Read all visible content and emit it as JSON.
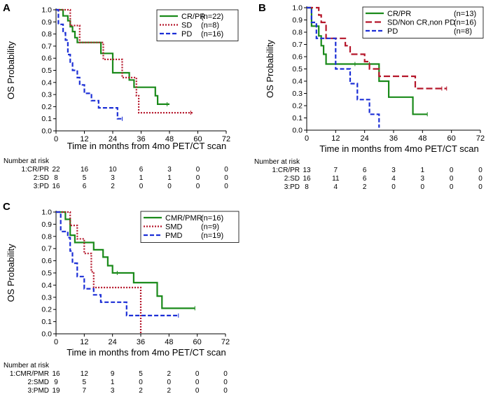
{
  "chart_data": [
    {
      "panel_label": "A",
      "type": "line",
      "title": "",
      "xlabel": "Time in months from 4mo PET/CT scan",
      "ylabel": "OS Probability",
      "xlim": [
        0,
        72
      ],
      "ylim": [
        0,
        1
      ],
      "x_ticks": [
        "0",
        "12",
        "24",
        "36",
        "48",
        "60",
        "72"
      ],
      "y_ticks": [
        "0.0",
        "0.1",
        "0.2",
        "0.3",
        "0.4",
        "0.5",
        "0.6",
        "0.7",
        "0.8",
        "0.9",
        "1.0"
      ],
      "legend_position": "top-right",
      "series": [
        {
          "name": "CR/PR",
          "n_label": "(n=22)",
          "color": "#1a8a1a",
          "dash": "solid",
          "points": [
            [
              0,
              1
            ],
            [
              3,
              1
            ],
            [
              3,
              0.95
            ],
            [
              5,
              0.95
            ],
            [
              5,
              0.91
            ],
            [
              6,
              0.91
            ],
            [
              6,
              0.86
            ],
            [
              7,
              0.86
            ],
            [
              7,
              0.82
            ],
            [
              8,
              0.82
            ],
            [
              8,
              0.77
            ],
            [
              9,
              0.77
            ],
            [
              9,
              0.73
            ],
            [
              19,
              0.73
            ],
            [
              19,
              0.64
            ],
            [
              24,
              0.64
            ],
            [
              24,
              0.48
            ],
            [
              31,
              0.48
            ],
            [
              31,
              0.42
            ],
            [
              33,
              0.42
            ],
            [
              33,
              0.36
            ],
            [
              42,
              0.36
            ],
            [
              42,
              0.29
            ],
            [
              43,
              0.29
            ],
            [
              43,
              0.22
            ],
            [
              48,
              0.22
            ]
          ],
          "censor": [
            47
          ]
        },
        {
          "name": "SD",
          "n_label": "(n=8)",
          "color": "#b5162a",
          "dash": "dot",
          "points": [
            [
              0,
              1
            ],
            [
              6,
              1
            ],
            [
              6,
              0.87
            ],
            [
              10,
              0.87
            ],
            [
              10,
              0.73
            ],
            [
              20,
              0.73
            ],
            [
              20,
              0.59
            ],
            [
              28,
              0.59
            ],
            [
              28,
              0.44
            ],
            [
              34,
              0.44
            ],
            [
              34,
              0.29
            ],
            [
              35,
              0.29
            ],
            [
              35,
              0.15
            ],
            [
              58,
              0.15
            ]
          ],
          "censor": [
            57
          ]
        },
        {
          "name": "PD",
          "n_label": "(n=16)",
          "color": "#1c2fd6",
          "dash": "dash",
          "points": [
            [
              0,
              1
            ],
            [
              1,
              1
            ],
            [
              1,
              0.88
            ],
            [
              3,
              0.88
            ],
            [
              3,
              0.81
            ],
            [
              4,
              0.81
            ],
            [
              4,
              0.75
            ],
            [
              5,
              0.75
            ],
            [
              5,
              0.63
            ],
            [
              6,
              0.63
            ],
            [
              6,
              0.56
            ],
            [
              7,
              0.56
            ],
            [
              7,
              0.5
            ],
            [
              9,
              0.5
            ],
            [
              9,
              0.44
            ],
            [
              10,
              0.44
            ],
            [
              10,
              0.38
            ],
            [
              12,
              0.38
            ],
            [
              12,
              0.31
            ],
            [
              15,
              0.31
            ],
            [
              15,
              0.25
            ],
            [
              18,
              0.25
            ],
            [
              18,
              0.19
            ],
            [
              26,
              0.19
            ],
            [
              26,
              0.1
            ],
            [
              28,
              0.1
            ]
          ],
          "censor": [
            28
          ]
        }
      ],
      "risk_table": {
        "title": "Number at risk",
        "times": [
          "0",
          "12",
          "24",
          "36",
          "48",
          "60",
          "72"
        ],
        "rows": [
          {
            "label": "1:CR/PR",
            "counts": [
              "22",
              "16",
              "10",
              "6",
              "3",
              "0",
              "0"
            ]
          },
          {
            "label": "2:SD",
            "counts": [
              "8",
              "5",
              "3",
              "1",
              "1",
              "0",
              "0"
            ]
          },
          {
            "label": "3:PD",
            "counts": [
              "16",
              "6",
              "2",
              "0",
              "0",
              "0",
              "0"
            ]
          }
        ]
      }
    },
    {
      "panel_label": "B",
      "type": "line",
      "title": "",
      "xlabel": "Time in months from 4mo PET/CT scan",
      "ylabel": "OS Probability",
      "xlim": [
        0,
        72
      ],
      "ylim": [
        0,
        1
      ],
      "x_ticks": [
        "0",
        "12",
        "24",
        "36",
        "48",
        "60",
        "72"
      ],
      "y_ticks": [
        "0.0",
        "0.1",
        "0.2",
        "0.3",
        "0.4",
        "0.5",
        "0.6",
        "0.7",
        "0.8",
        "0.9",
        "1.0"
      ],
      "legend_position": "top-right",
      "series": [
        {
          "name": "CR/PR",
          "n_label": "(n=13)",
          "color": "#1a8a1a",
          "dash": "solid",
          "points": [
            [
              0,
              1
            ],
            [
              2,
              1
            ],
            [
              2,
              0.85
            ],
            [
              5,
              0.85
            ],
            [
              5,
              0.77
            ],
            [
              6,
              0.77
            ],
            [
              6,
              0.69
            ],
            [
              7,
              0.69
            ],
            [
              7,
              0.62
            ],
            [
              8,
              0.62
            ],
            [
              8,
              0.54
            ],
            [
              30,
              0.54
            ],
            [
              30,
              0.4
            ],
            [
              34,
              0.4
            ],
            [
              34,
              0.27
            ],
            [
              44,
              0.27
            ],
            [
              44,
              0.13
            ],
            [
              50,
              0.13
            ]
          ],
          "censor": [
            20,
            26,
            50
          ]
        },
        {
          "name": "SD/Non CR,non PD",
          "n_label": "(n=16)",
          "color": "#b5162a",
          "dash": "longdash",
          "points": [
            [
              0,
              1
            ],
            [
              5,
              1
            ],
            [
              5,
              0.94
            ],
            [
              6,
              0.94
            ],
            [
              6,
              0.88
            ],
            [
              8,
              0.88
            ],
            [
              8,
              0.75
            ],
            [
              16,
              0.75
            ],
            [
              16,
              0.69
            ],
            [
              18,
              0.69
            ],
            [
              18,
              0.62
            ],
            [
              24,
              0.62
            ],
            [
              24,
              0.56
            ],
            [
              26,
              0.56
            ],
            [
              26,
              0.5
            ],
            [
              30,
              0.5
            ],
            [
              30,
              0.44
            ],
            [
              45,
              0.44
            ],
            [
              45,
              0.34
            ],
            [
              58,
              0.34
            ]
          ],
          "censor": [
            56,
            58
          ]
        },
        {
          "name": "PD",
          "n_label": "(n=8)",
          "color": "#1c2fd6",
          "dash": "dash",
          "points": [
            [
              0,
              1
            ],
            [
              2,
              1
            ],
            [
              2,
              0.88
            ],
            [
              4,
              0.88
            ],
            [
              4,
              0.75
            ],
            [
              12,
              0.75
            ],
            [
              12,
              0.5
            ],
            [
              18,
              0.5
            ],
            [
              18,
              0.38
            ],
            [
              21,
              0.38
            ],
            [
              21,
              0.25
            ],
            [
              26,
              0.25
            ],
            [
              26,
              0.13
            ],
            [
              30,
              0.13
            ],
            [
              30,
              0.02
            ]
          ],
          "censor": []
        }
      ],
      "risk_table": {
        "title": "Number at risk",
        "times": [
          "0",
          "12",
          "24",
          "36",
          "48",
          "60",
          "72"
        ],
        "rows": [
          {
            "label": "1:CR/PR",
            "counts": [
              "13",
              "7",
              "6",
              "3",
              "1",
              "0",
              "0"
            ]
          },
          {
            "label": "2:SD",
            "counts": [
              "16",
              "11",
              "6",
              "4",
              "3",
              "0",
              "0"
            ]
          },
          {
            "label": "3:PD",
            "counts": [
              "8",
              "4",
              "2",
              "0",
              "0",
              "0",
              "0"
            ]
          }
        ]
      }
    },
    {
      "panel_label": "C",
      "type": "line",
      "title": "",
      "xlabel": "Time in months from 4mo PET/CT scan",
      "ylabel": "OS Probability",
      "xlim": [
        0,
        72
      ],
      "ylim": [
        0,
        1
      ],
      "x_ticks": [
        "0",
        "12",
        "24",
        "36",
        "48",
        "60",
        "72"
      ],
      "y_ticks": [
        "0.0",
        "0.1",
        "0.2",
        "0.3",
        "0.4",
        "0.5",
        "0.6",
        "0.7",
        "0.8",
        "0.9",
        "1.0"
      ],
      "legend_position": "top-right",
      "series": [
        {
          "name": "CMR/PMR",
          "n_label": "(n=16)",
          "color": "#1a8a1a",
          "dash": "solid",
          "points": [
            [
              0,
              1
            ],
            [
              4,
              1
            ],
            [
              4,
              0.94
            ],
            [
              6,
              0.94
            ],
            [
              6,
              0.81
            ],
            [
              8,
              0.81
            ],
            [
              8,
              0.75
            ],
            [
              16,
              0.75
            ],
            [
              16,
              0.69
            ],
            [
              20,
              0.69
            ],
            [
              20,
              0.63
            ],
            [
              22,
              0.63
            ],
            [
              22,
              0.56
            ],
            [
              24,
              0.56
            ],
            [
              24,
              0.5
            ],
            [
              33,
              0.5
            ],
            [
              33,
              0.42
            ],
            [
              43,
              0.42
            ],
            [
              43,
              0.31
            ],
            [
              45,
              0.31
            ],
            [
              45,
              0.21
            ],
            [
              59,
              0.21
            ]
          ],
          "censor": [
            26,
            59
          ]
        },
        {
          "name": "SMD",
          "n_label": "(n=9)",
          "color": "#b5162a",
          "dash": "dot",
          "points": [
            [
              0,
              1
            ],
            [
              6,
              1
            ],
            [
              6,
              0.89
            ],
            [
              9,
              0.89
            ],
            [
              9,
              0.78
            ],
            [
              12,
              0.78
            ],
            [
              12,
              0.66
            ],
            [
              15,
              0.66
            ],
            [
              15,
              0.51
            ],
            [
              16,
              0.51
            ],
            [
              16,
              0.38
            ],
            [
              36,
              0.38
            ],
            [
              36,
              0
            ]
          ],
          "censor": []
        },
        {
          "name": "PMD",
          "n_label": "(n=19)",
          "color": "#1c2fd6",
          "dash": "dash",
          "points": [
            [
              0,
              1
            ],
            [
              2,
              1
            ],
            [
              2,
              0.84
            ],
            [
              5,
              0.84
            ],
            [
              5,
              0.79
            ],
            [
              6,
              0.79
            ],
            [
              6,
              0.68
            ],
            [
              7,
              0.68
            ],
            [
              7,
              0.58
            ],
            [
              9,
              0.58
            ],
            [
              9,
              0.47
            ],
            [
              12,
              0.47
            ],
            [
              12,
              0.37
            ],
            [
              16,
              0.37
            ],
            [
              16,
              0.32
            ],
            [
              19,
              0.32
            ],
            [
              19,
              0.26
            ],
            [
              30,
              0.26
            ],
            [
              30,
              0.15
            ],
            [
              52,
              0.15
            ]
          ],
          "censor": [
            52
          ]
        }
      ],
      "risk_table": {
        "title": "Number at risk",
        "times": [
          "0",
          "12",
          "24",
          "36",
          "48",
          "60",
          "72"
        ],
        "rows": [
          {
            "label": "1:CMR/PMR",
            "counts": [
              "16",
              "12",
              "9",
              "5",
              "2",
              "0",
              "0"
            ]
          },
          {
            "label": "2:SMD",
            "counts": [
              "9",
              "5",
              "1",
              "0",
              "0",
              "0",
              "0"
            ]
          },
          {
            "label": "3:PMD",
            "counts": [
              "19",
              "7",
              "3",
              "2",
              "2",
              "0",
              "0"
            ]
          }
        ]
      }
    }
  ]
}
